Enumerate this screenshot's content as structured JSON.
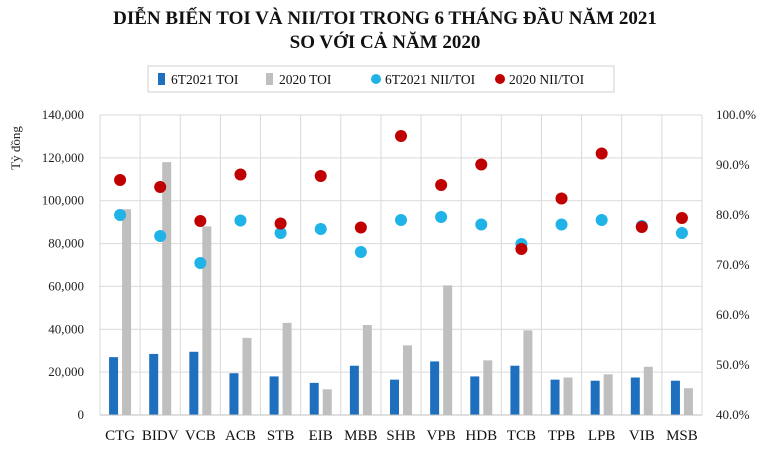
{
  "chart_data": {
    "type": "bar",
    "title_line1": "DIỄN BIẾN TOI VÀ NII/TOI TRONG 6 THÁNG ĐẦU NĂM 2021",
    "title_line2": "SO VỚI CẢ NĂM 2020",
    "ylabel": "Tỷ đồng",
    "ylim": [
      0,
      140000
    ],
    "y2lim": [
      40,
      100
    ],
    "y_ticks": [
      "0",
      "20,000",
      "40,000",
      "60,000",
      "80,000",
      "100,000",
      "120,000",
      "140,000"
    ],
    "y2_ticks": [
      "40.0%",
      "50.0%",
      "60.0%",
      "70.0%",
      "80.0%",
      "90.0%",
      "100.0%"
    ],
    "categories": [
      "CTG",
      "BIDV",
      "VCB",
      "ACB",
      "STB",
      "EIB",
      "MBB",
      "SHB",
      "VPB",
      "HDB",
      "TCB",
      "TPB",
      "LPB",
      "VIB",
      "MSB"
    ],
    "series": [
      {
        "name": "6T2021 TOI",
        "kind": "bar",
        "axis": "left",
        "color": "#1f6fbf",
        "values": [
          27000,
          28500,
          29500,
          19500,
          18000,
          15000,
          23000,
          16500,
          25000,
          18000,
          23000,
          16500,
          16000,
          17500,
          16000
        ]
      },
      {
        "name": "2020 TOI",
        "kind": "bar",
        "axis": "left",
        "color": "#bfbfbf",
        "values": [
          96000,
          118000,
          88000,
          36000,
          43000,
          12000,
          42000,
          32500,
          60500,
          25500,
          39500,
          17500,
          19000,
          22500,
          12500
        ]
      },
      {
        "name": "6T2021 NII/TOI",
        "kind": "scatter",
        "axis": "right",
        "color": "#1fb3e8",
        "values": [
          80.0,
          75.8,
          70.4,
          78.9,
          76.4,
          77.2,
          72.6,
          79.0,
          79.6,
          78.1,
          74.2,
          78.1,
          79.0,
          77.8,
          76.4
        ]
      },
      {
        "name": "2020 NII/TOI",
        "kind": "scatter",
        "axis": "right",
        "color": "#c00000",
        "values": [
          87.0,
          85.6,
          78.8,
          88.1,
          78.3,
          87.8,
          77.5,
          95.8,
          86.0,
          90.1,
          73.2,
          83.3,
          92.3,
          77.6,
          79.4
        ]
      }
    ]
  }
}
